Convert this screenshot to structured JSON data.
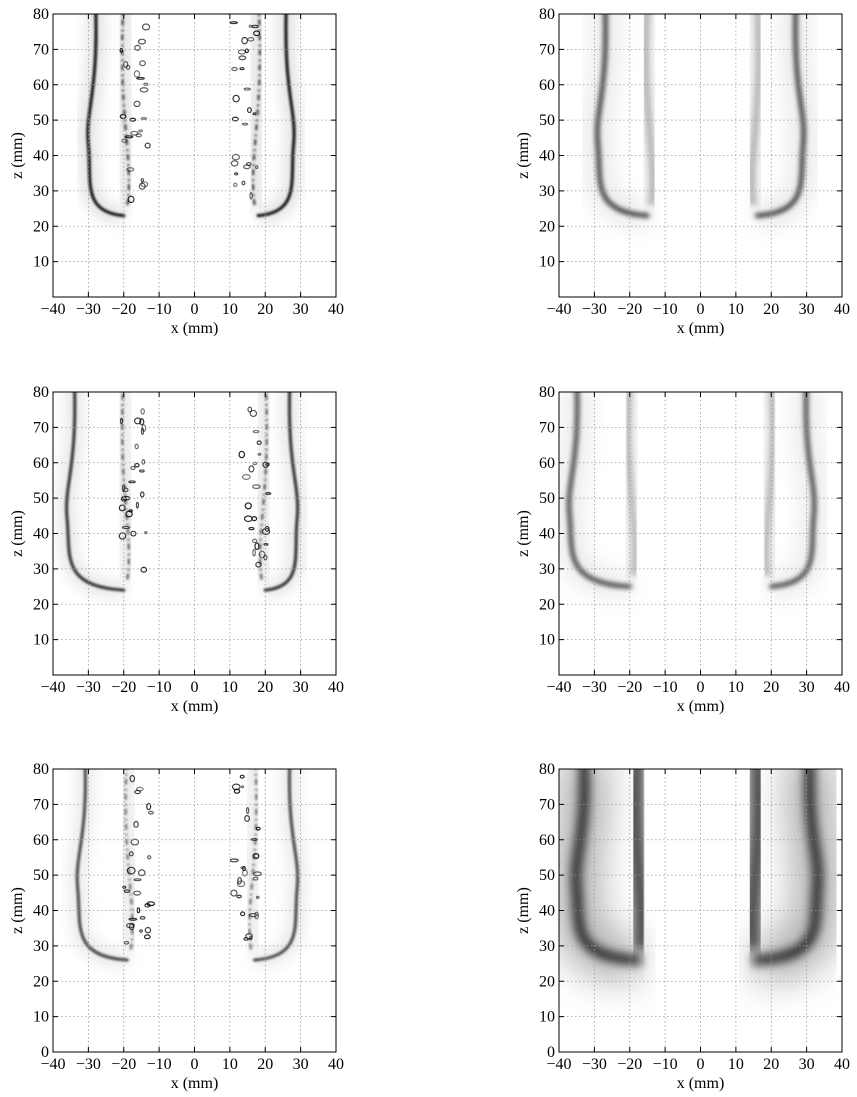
{
  "chart_data": [
    {
      "type": "heatmap",
      "xlabel": "x (mm)",
      "ylabel": "z (mm)",
      "xlim": [
        -40,
        40
      ],
      "ylim": [
        0,
        80
      ],
      "xticks": [
        "−40",
        "−30",
        "−20",
        "−10",
        "0",
        "10",
        "20",
        "30",
        "40"
      ],
      "yticks": [
        "10",
        "20",
        "30",
        "40",
        "50",
        "60",
        "70",
        "80"
      ],
      "grid": true,
      "colormap": "gray_r",
      "features": {
        "flame_tip_z": 23,
        "flame_tip_x_left": -20,
        "flame_tip_x_right": 18,
        "edge_x_left": -30,
        "edge_x_right": 28,
        "sharpness": "sharp",
        "intensity": 1.0,
        "turbulent_inner": true
      }
    },
    {
      "type": "heatmap",
      "xlabel": "x (mm)",
      "ylabel": "z (mm)",
      "xlim": [
        -40,
        40
      ],
      "ylim": [
        0,
        80
      ],
      "xticks": [
        "−40",
        "−30",
        "−20",
        "−10",
        "0",
        "10",
        "20",
        "30",
        "40"
      ],
      "yticks": [
        "10",
        "20",
        "30",
        "40",
        "50",
        "60",
        "70",
        "80"
      ],
      "grid": true,
      "colormap": "gray_r",
      "features": {
        "flame_tip_z": 23,
        "flame_tip_x_left": -15,
        "flame_tip_x_right": 16,
        "edge_x_left": -29,
        "edge_x_right": 29,
        "sharpness": "smooth",
        "intensity": 0.85,
        "turbulent_inner": false
      }
    },
    {
      "type": "heatmap",
      "xlabel": "x (mm)",
      "ylabel": "z (mm)",
      "xlim": [
        -40,
        40
      ],
      "ylim": [
        0,
        80
      ],
      "xticks": [
        "−40",
        "−30",
        "−20",
        "−10",
        "0",
        "10",
        "20",
        "30",
        "40"
      ],
      "yticks": [
        "10",
        "20",
        "30",
        "40",
        "50",
        "60",
        "70",
        "80"
      ],
      "grid": true,
      "colormap": "gray_r",
      "features": {
        "flame_tip_z": 24,
        "flame_tip_x_left": -20,
        "flame_tip_x_right": 20,
        "edge_x_left": -36,
        "edge_x_right": 29,
        "sharpness": "sharp",
        "intensity": 0.85,
        "turbulent_inner": true
      }
    },
    {
      "type": "heatmap",
      "xlabel": "x (mm)",
      "ylabel": "z (mm)",
      "xlim": [
        -40,
        40
      ],
      "ylim": [
        0,
        80
      ],
      "xticks": [
        "−40",
        "−30",
        "−20",
        "−10",
        "0",
        "10",
        "20",
        "30",
        "40"
      ],
      "yticks": [
        "10",
        "20",
        "30",
        "40",
        "50",
        "60",
        "70",
        "80"
      ],
      "grid": true,
      "colormap": "gray_r",
      "features": {
        "flame_tip_z": 25,
        "flame_tip_x_left": -20,
        "flame_tip_x_right": 20,
        "edge_x_left": -37,
        "edge_x_right": 32,
        "sharpness": "smooth",
        "intensity": 0.8,
        "turbulent_inner": false
      }
    },
    {
      "type": "heatmap",
      "xlabel": "x (mm)",
      "ylabel": "z (mm)",
      "xlim": [
        -40,
        40
      ],
      "ylim": [
        0,
        80
      ],
      "xticks": [
        "−40",
        "−30",
        "−20",
        "−10",
        "0",
        "10",
        "20",
        "30",
        "40"
      ],
      "yticks": [
        "0",
        "10",
        "20",
        "30",
        "40",
        "50",
        "60",
        "70",
        "80"
      ],
      "grid": true,
      "colormap": "gray_r",
      "features": {
        "flame_tip_z": 26,
        "flame_tip_x_left": -19,
        "flame_tip_x_right": 17,
        "edge_x_left": -33,
        "edge_x_right": 29,
        "sharpness": "sharp",
        "intensity": 0.75,
        "turbulent_inner": true
      }
    },
    {
      "type": "heatmap",
      "xlabel": "x (mm)",
      "ylabel": "z (mm)",
      "xlim": [
        -40,
        40
      ],
      "ylim": [
        0,
        80
      ],
      "xticks": [
        "−40",
        "−30",
        "−20",
        "−10",
        "0",
        "10",
        "20",
        "30",
        "40"
      ],
      "yticks": [
        "0",
        "10",
        "20",
        "30",
        "40",
        "50",
        "60",
        "70",
        "80"
      ],
      "grid": true,
      "colormap": "gray_r",
      "features": {
        "flame_tip_z": 26,
        "flame_tip_x_left": -18,
        "flame_tip_x_right": 16,
        "edge_x_left": -35,
        "edge_x_right": 33,
        "sharpness": "diffuse",
        "intensity": 1.0,
        "turbulent_inner": false
      }
    }
  ]
}
